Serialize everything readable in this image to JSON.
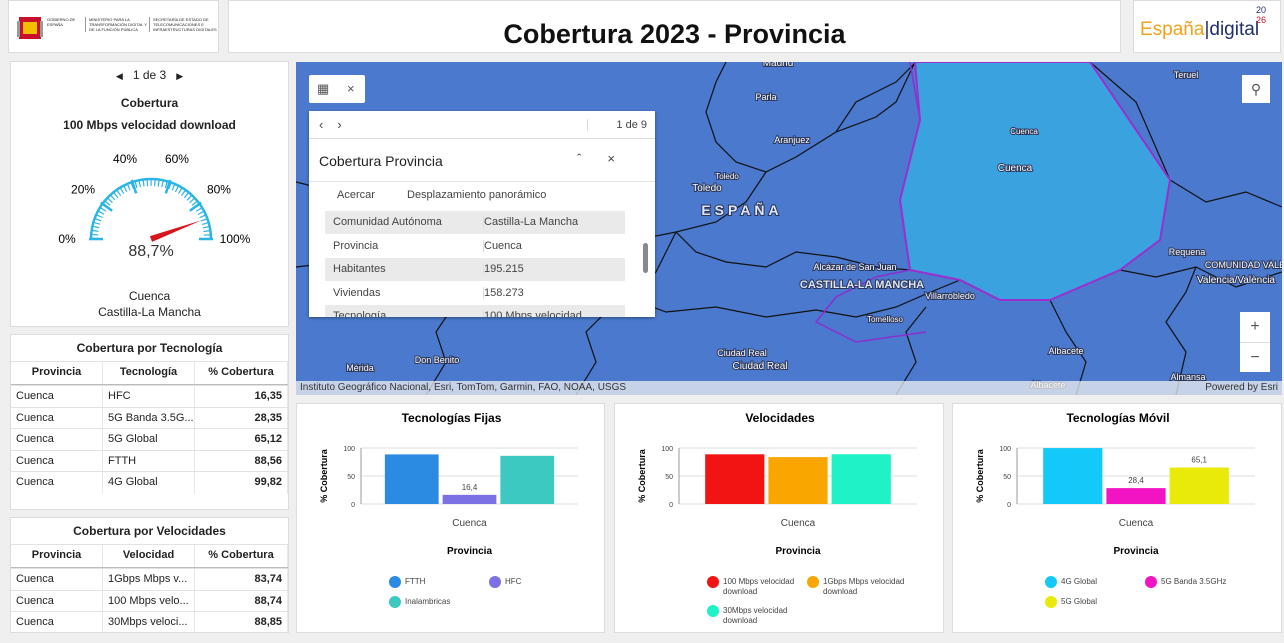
{
  "header": {
    "logo_left": [
      "GOBIERNO DE ESPAÑA",
      "MINISTERIO PARA LA TRANSFORMACIÓN DIGITAL Y DE LA FUNCIÓN PÚBLICA",
      "SECRETARÍA DE ESTADO DE TELECOMUNICACIONES E INFRAESTRUCTURAS DIGITALES"
    ],
    "title": "Cobertura 2023 - Provincia",
    "logo_right": {
      "text": "España",
      "separator": "|",
      "text2": "digital",
      "year_top": "20",
      "year_bottom": "26"
    }
  },
  "gauge": {
    "pager": "1 de 3",
    "title": "Cobertura",
    "subtitle": "100 Mbps velocidad download",
    "value": 88.7,
    "value_label": "88,7%",
    "range": [
      0,
      100
    ],
    "ticks": [
      {
        "value": 0,
        "label": "0%"
      },
      {
        "value": 20,
        "label": "20%"
      },
      {
        "value": 40,
        "label": "40%"
      },
      {
        "value": 60,
        "label": "60%"
      },
      {
        "value": 80,
        "label": "80%"
      },
      {
        "value": 100,
        "label": "100%"
      }
    ],
    "location": [
      "Cuenca",
      "Castilla-La Mancha"
    ]
  },
  "tables": [
    {
      "title": "Cobertura por Tecnología",
      "columns": [
        "Provincia",
        "Tecnología",
        "% Cobertura"
      ],
      "rows": [
        [
          "Cuenca",
          "HFC",
          "16,35"
        ],
        [
          "Cuenca",
          "5G Banda 3.5G...",
          "28,35"
        ],
        [
          "Cuenca",
          "5G Global",
          "65,12"
        ],
        [
          "Cuenca",
          "FTTH",
          "88,56"
        ],
        [
          "Cuenca",
          "4G Global",
          "99,82"
        ]
      ]
    },
    {
      "title": "Cobertura por Velocidades",
      "columns": [
        "Provincia",
        "Velocidad",
        "% Cobertura"
      ],
      "rows": [
        [
          "Cuenca",
          "1Gbps Mbps v...",
          "83,74"
        ],
        [
          "Cuenca",
          "100 Mbps velo...",
          "88,74"
        ],
        [
          "Cuenca",
          "30Mbps veloci...",
          "88,85"
        ]
      ]
    }
  ],
  "map": {
    "labels": [
      "Madrid",
      "Parla",
      "Aranjuez",
      "Toledo",
      "Toledo",
      "ESPAÑA",
      "Cuenca",
      "Cuenca",
      "Teruel",
      "Requena",
      "Valencia/València",
      "COMUNIDAD VALENCIANA",
      "Alcázar de San Juan",
      "CASTILLA-LA MANCHA",
      "Tomelloso",
      "Villarrobledo",
      "Ciudad Real",
      "Ciudad Real",
      "Don Benito",
      "Mérida",
      "Albacete",
      "Albacete",
      "Almansa"
    ],
    "attribution": "Instituto Geográfico Nacional, Esri, TomTom, Garmin, FAO, NOAA, USGS",
    "powered": "Powered by Esri",
    "popup": {
      "pager": "1 de 9",
      "title": "Cobertura Provincia",
      "actions": [
        "Acercar",
        "Desplazamiento panorámico"
      ],
      "rows": [
        [
          "Comunidad Autónoma",
          "Castilla-La Mancha"
        ],
        [
          "Provincia",
          "Cuenca"
        ],
        [
          "Habitantes",
          "195.215"
        ],
        [
          "Viviendas",
          "158.273"
        ],
        [
          "Tecnología",
          "100 Mbps velocidad"
        ]
      ]
    }
  },
  "charts": [
    {
      "type": "bar",
      "title": "Tecnologías Fijas",
      "ylabel": "% Cobertura",
      "xlabel": "Provincia",
      "categories": [
        "Cuenca"
      ],
      "ylim": [
        0,
        100
      ],
      "yticks": [
        0,
        50,
        100
      ],
      "grid": true,
      "series": [
        {
          "name": "FTTH",
          "color": "#2b8ae2",
          "values": [
            88.56
          ]
        },
        {
          "name": "HFC",
          "color": "#7b70e4",
          "values": [
            16.35
          ],
          "value_labels": [
            "16,4"
          ]
        },
        {
          "name": "Inalambricas",
          "color": "#3cc9c1",
          "values": [
            86
          ]
        }
      ]
    },
    {
      "type": "bar",
      "title": "Velocidades",
      "ylabel": "% Cobertura",
      "xlabel": "Provincia",
      "categories": [
        "Cuenca"
      ],
      "ylim": [
        0,
        100
      ],
      "yticks": [
        0,
        50,
        100
      ],
      "grid": true,
      "series": [
        {
          "name": "100 Mbps velocidad download",
          "color": "#f21313",
          "values": [
            88.74
          ]
        },
        {
          "name": "1Gbps Mbps velocidad download",
          "color": "#f9a600",
          "values": [
            83.74
          ]
        },
        {
          "name": "30Mbps velocidad download",
          "color": "#1ff2c4",
          "values": [
            88.85
          ]
        }
      ]
    },
    {
      "type": "bar",
      "title": "Tecnologías Móvil",
      "ylabel": "% Cobertura",
      "xlabel": "Provincia",
      "categories": [
        "Cuenca"
      ],
      "ylim": [
        0,
        100
      ],
      "yticks": [
        0,
        50,
        100
      ],
      "grid": true,
      "series": [
        {
          "name": "4G Global",
          "color": "#12c9f9",
          "values": [
            99.82
          ]
        },
        {
          "name": "5G Banda 3.5GHz",
          "color": "#f213c3",
          "values": [
            28.35
          ],
          "value_labels": [
            "28,4"
          ]
        },
        {
          "name": "5G Global",
          "color": "#e9e90a",
          "values": [
            65.12
          ],
          "value_labels": [
            "65,1"
          ]
        }
      ]
    }
  ]
}
